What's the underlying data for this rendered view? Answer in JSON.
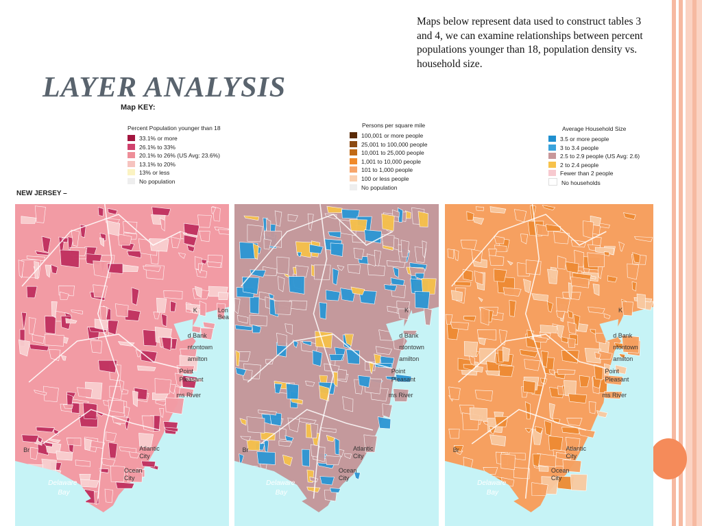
{
  "slide": {
    "title": "LAYER ANALYSIS",
    "intro": "Maps below represent data used to construct tables 3 and 4, we can examine relationships between percent populations younger than 18, population density vs. household size."
  },
  "key_label": "Map KEY:",
  "region_label": "NEW JERSEY –",
  "legends": {
    "youth": {
      "title": "Percent Population younger than 18",
      "items": [
        {
          "label": "33.1% or more",
          "color": "#a3163f"
        },
        {
          "label": "26.1% to 33%",
          "color": "#d0426d"
        },
        {
          "label": "20.1% to 26% (US Avg: 23.6%)",
          "color": "#ee8e98"
        },
        {
          "label": "13.1% to 20%",
          "color": "#f6c3bf"
        },
        {
          "label": "13% or less",
          "color": "#fbf3c2"
        },
        {
          "label": "No population",
          "color": "#eeeeee"
        }
      ]
    },
    "density": {
      "title": "Persons per square mile",
      "items": [
        {
          "label": "100,001 or more people",
          "color": "#5a2b08"
        },
        {
          "label": "25,001 to 100,000 people",
          "color": "#8c4a12"
        },
        {
          "label": "10,001 to 25,000 people",
          "color": "#c16a15"
        },
        {
          "label": "1,001 to 10,000 people",
          "color": "#f08a2a"
        },
        {
          "label": "101 to 1,000 people",
          "color": "#f7a56a"
        },
        {
          "label": "100 or less people",
          "color": "#fbd0b0"
        },
        {
          "label": "No population",
          "color": "#eeeeee"
        }
      ]
    },
    "household": {
      "title": "Average Household Size",
      "items": [
        {
          "label": "3.5 or more people",
          "color": "#1f8fcf"
        },
        {
          "label": "3 to 3.4 people",
          "color": "#3aa3dc"
        },
        {
          "label": "2.5 to 2.9 people (US Avg: 2.6)",
          "color": "#c8979a"
        },
        {
          "label": "2 to 2.4 people",
          "color": "#f7c24b"
        },
        {
          "label": "Fewer than 2 people",
          "color": "#f7c9cf"
        },
        {
          "label": "No households",
          "color": "#ffffff"
        }
      ]
    }
  },
  "map_labels": {
    "red_bank": "d Bank",
    "tontown": "ntontown",
    "hamilton": "amilton",
    "point": "Point",
    "pleasant": "Pleasant",
    "toms_river": "ms River",
    "atlantic": "Atlantic",
    "city": "City",
    "ocean": "Ocean",
    "delaware": "Delaware",
    "bay": "Bay",
    "br": "Br",
    "k": "K",
    "lon": "Lon",
    "bea": "Bea"
  },
  "maps": [
    {
      "name": "youth-map",
      "land": "#f29ba4",
      "accent": "#c0305f",
      "light": "#f9cfd0"
    },
    {
      "name": "household-map",
      "land": "#c4999c",
      "accent": "#2c96d4",
      "light": "#f6c04a"
    },
    {
      "name": "density-map",
      "land": "#f6a060",
      "accent": "#ee8a33",
      "light": "#f9c9a0"
    }
  ],
  "colors": {
    "water": "#c6f3f6",
    "boundary": "#ffffff"
  }
}
